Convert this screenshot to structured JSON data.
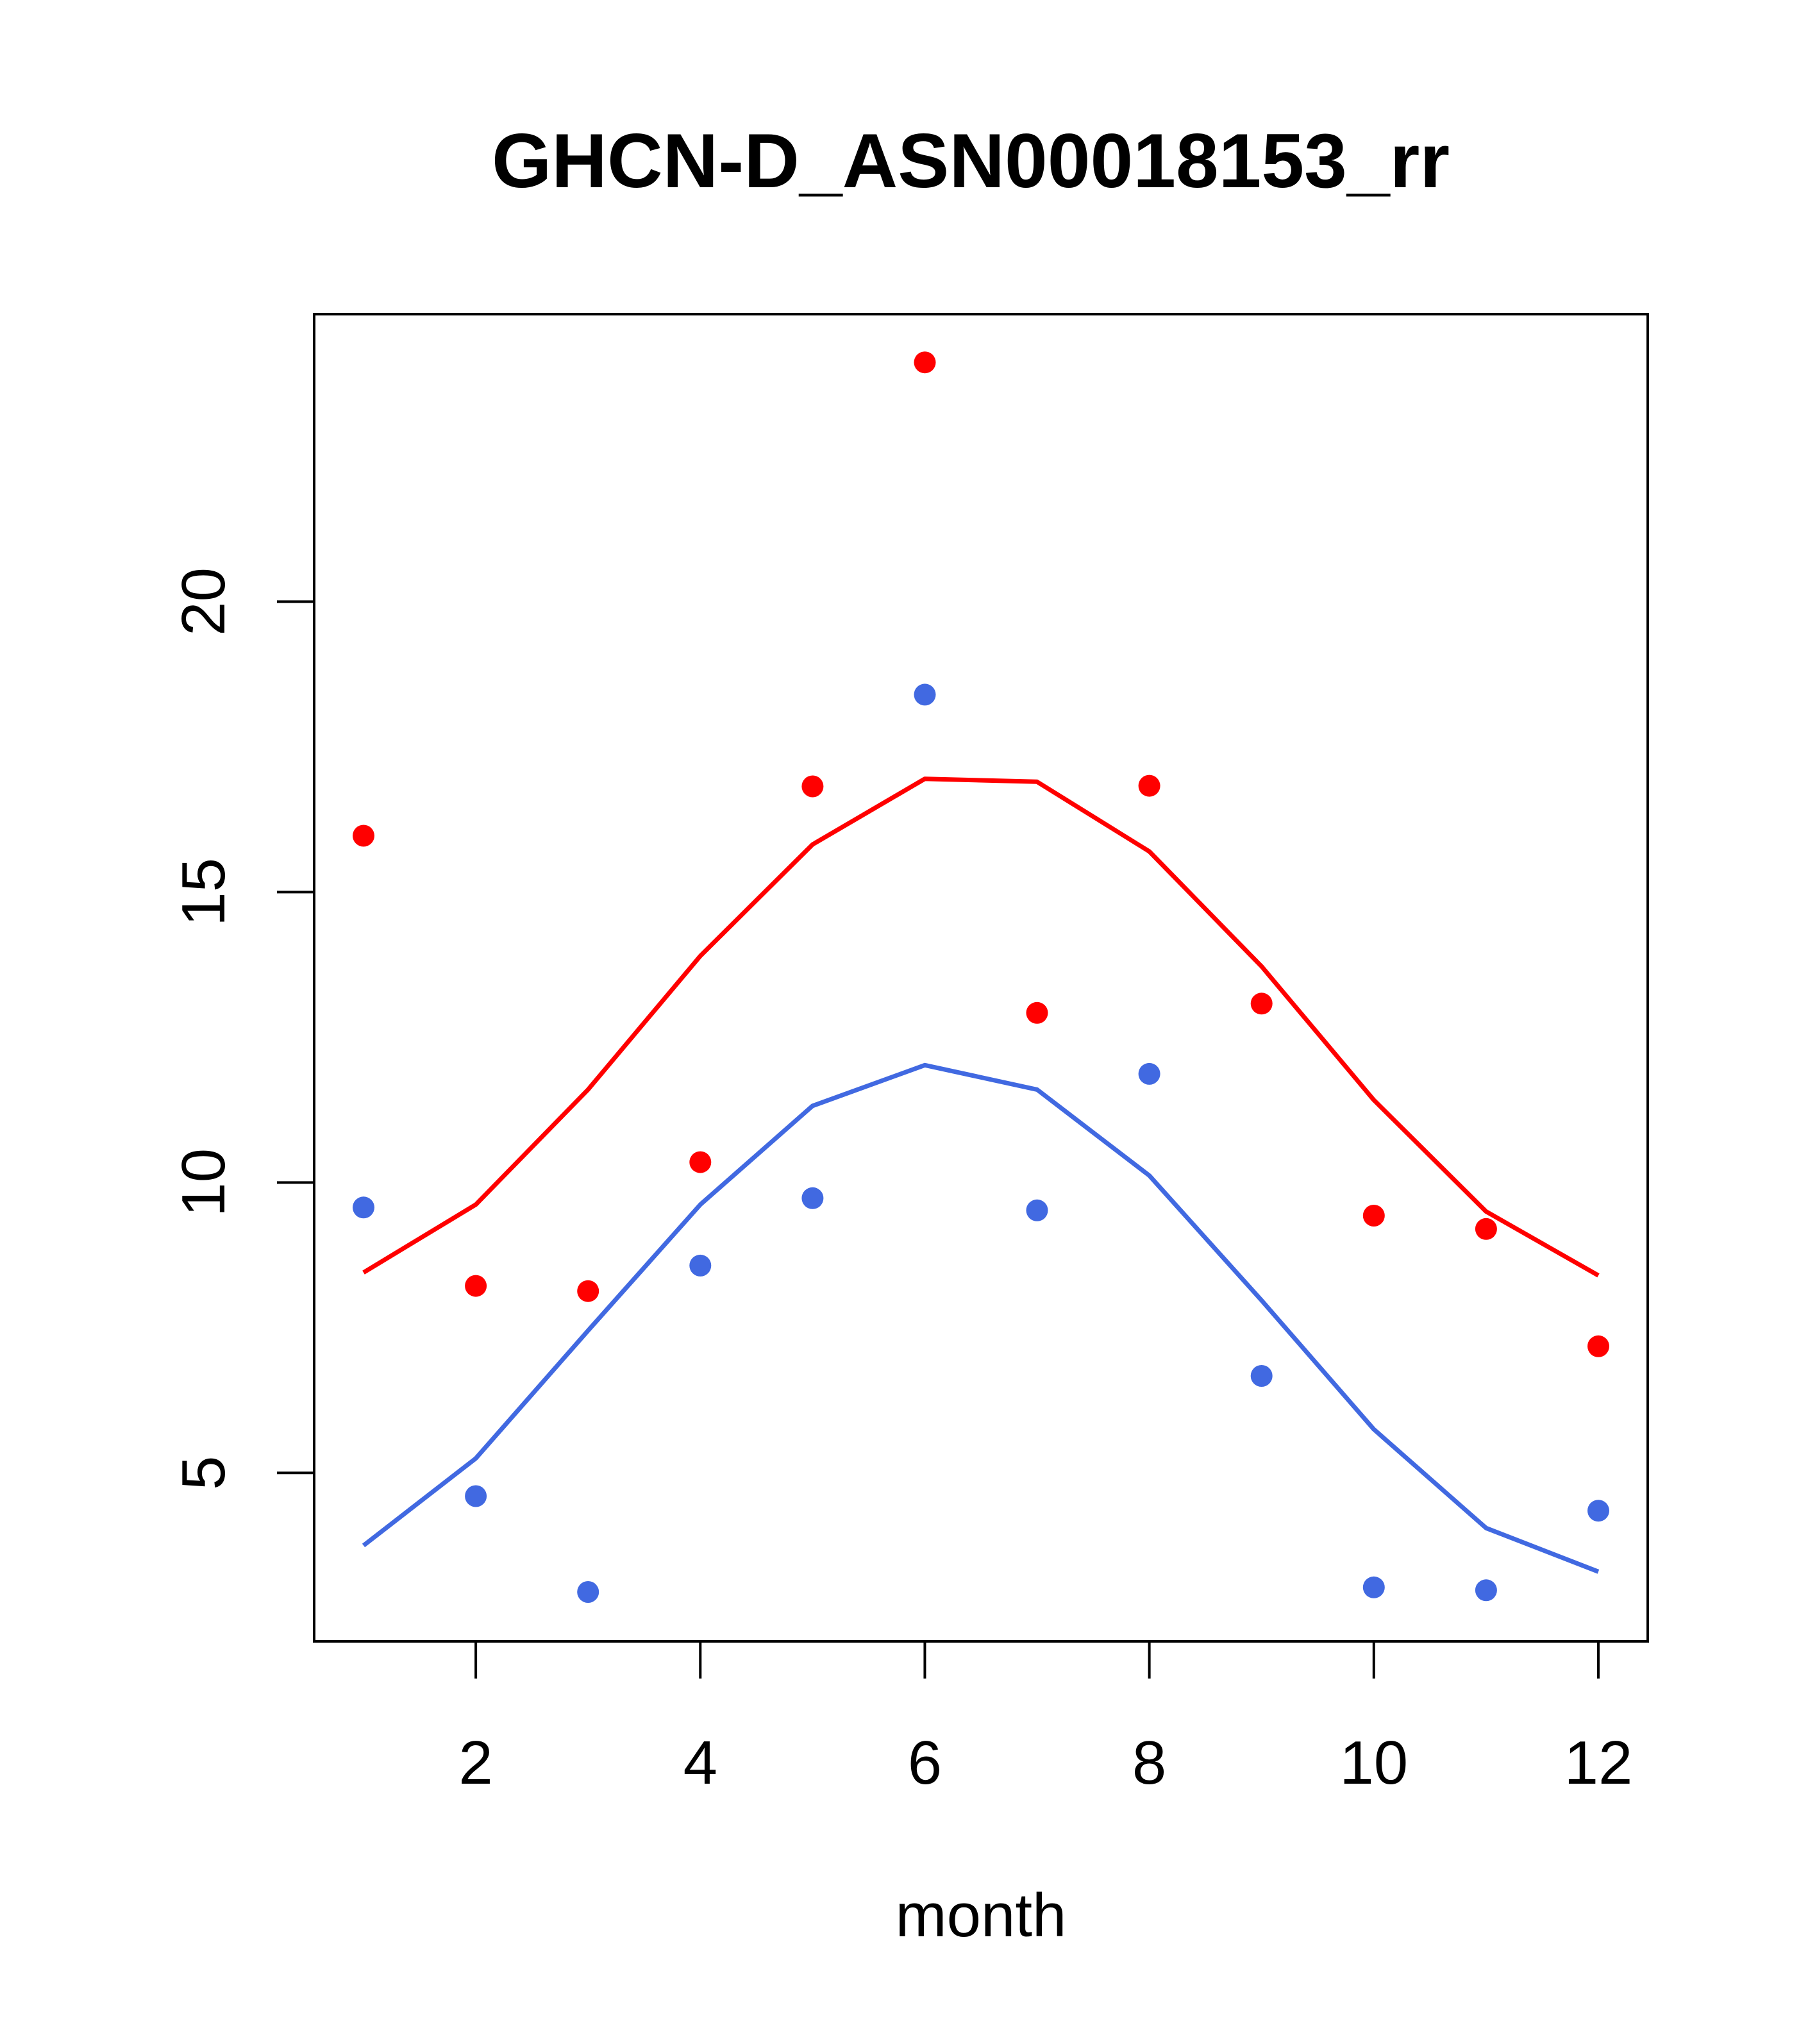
{
  "chart_data": {
    "type": "line",
    "title": "GHCN-D_ASN00018153_rr",
    "xlabel": "month",
    "ylabel": "",
    "xlim": [
      0.56,
      12.44
    ],
    "ylim": [
      2.1,
      24.95
    ],
    "x_ticks": [
      2,
      4,
      6,
      8,
      10,
      12
    ],
    "y_ticks": [
      5,
      10,
      15,
      20
    ],
    "grid": false,
    "legend": "none",
    "colors": {
      "red": "#ff0000",
      "blue": "#4169e1",
      "axis": "#000000"
    },
    "x": [
      1,
      2,
      3,
      4,
      5,
      6,
      7,
      8,
      9,
      10,
      11,
      12
    ],
    "series": [
      {
        "kind": "line",
        "color": "#ff0000",
        "values": [
          8.45,
          9.62,
          11.6,
          13.9,
          15.82,
          16.95,
          16.9,
          15.7,
          13.72,
          11.42,
          9.5,
          8.4
        ]
      },
      {
        "kind": "line",
        "color": "#4169e1",
        "values": [
          3.75,
          5.25,
          7.45,
          9.62,
          11.32,
          12.02,
          11.6,
          10.12,
          7.97,
          5.75,
          4.05,
          3.3
        ]
      },
      {
        "kind": "points",
        "color": "#ff0000",
        "values": [
          15.97,
          8.22,
          8.13,
          10.35,
          16.82,
          24.12,
          12.92,
          16.83,
          13.08,
          9.43,
          9.2,
          7.18
        ]
      },
      {
        "kind": "points",
        "color": "#4169e1",
        "values": [
          9.57,
          4.6,
          2.95,
          8.57,
          9.73,
          18.4,
          9.52,
          11.87,
          6.67,
          3.03,
          2.98,
          4.35
        ]
      }
    ]
  }
}
